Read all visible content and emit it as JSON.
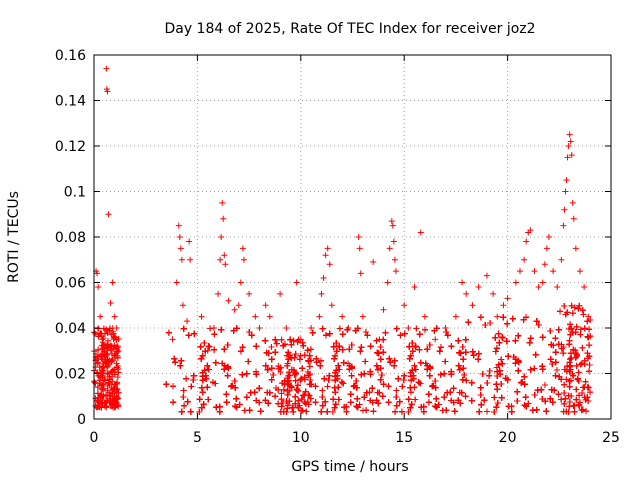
{
  "chart_data": {
    "type": "scatter",
    "title": "Day 184 of 2025, Rate Of TEC Index for receiver joz2",
    "xlabel": "GPS time / hours",
    "ylabel": "ROTI / TECUs",
    "xlim": [
      0,
      25
    ],
    "ylim": [
      0,
      0.16
    ],
    "xticks": [
      0,
      5,
      10,
      15,
      20,
      25
    ],
    "yticks": [
      0,
      0.02,
      0.04,
      0.06,
      0.08,
      0.1,
      0.12,
      0.14,
      0.16
    ],
    "xtick_labels": [
      "0",
      "5",
      "10",
      "15",
      "20",
      "25"
    ],
    "ytick_labels": [
      "0",
      "0.02",
      "0.04",
      "0.06",
      "0.08",
      "0.1",
      "0.12",
      "0.14",
      "0.16"
    ],
    "grid": true,
    "marker": "+",
    "color": "#ff0000",
    "series": [
      {
        "points": [
          [
            0.1,
            0.065
          ],
          [
            0.15,
            0.064
          ],
          [
            0.2,
            0.058
          ],
          [
            0.3,
            0.045
          ],
          [
            0.4,
            0.035
          ],
          [
            0.6,
            0.154
          ],
          [
            0.62,
            0.145
          ],
          [
            0.65,
            0.144
          ],
          [
            0.7,
            0.09
          ],
          [
            0.8,
            0.051
          ],
          [
            0.9,
            0.06
          ],
          [
            1.0,
            0.045
          ],
          [
            1.1,
            0.04
          ],
          [
            0.5,
            0.028
          ],
          [
            0.85,
            0.025
          ],
          [
            3.8,
            0.035
          ],
          [
            4.0,
            0.06
          ],
          [
            4.1,
            0.085
          ],
          [
            4.15,
            0.08
          ],
          [
            4.2,
            0.075
          ],
          [
            4.25,
            0.07
          ],
          [
            4.3,
            0.05
          ],
          [
            4.5,
            0.043
          ],
          [
            4.6,
            0.078
          ],
          [
            4.65,
            0.07
          ],
          [
            5.2,
            0.045
          ],
          [
            5.5,
            0.03
          ],
          [
            5.8,
            0.04
          ],
          [
            6.0,
            0.055
          ],
          [
            6.1,
            0.07
          ],
          [
            6.15,
            0.08
          ],
          [
            6.2,
            0.095
          ],
          [
            6.25,
            0.088
          ],
          [
            6.3,
            0.072
          ],
          [
            6.35,
            0.068
          ],
          [
            6.5,
            0.052
          ],
          [
            6.8,
            0.048
          ],
          [
            7.0,
            0.05
          ],
          [
            7.1,
            0.06
          ],
          [
            7.2,
            0.075
          ],
          [
            7.25,
            0.07
          ],
          [
            7.5,
            0.055
          ],
          [
            7.8,
            0.045
          ],
          [
            8.0,
            0.04
          ],
          [
            8.3,
            0.05
          ],
          [
            8.5,
            0.045
          ],
          [
            9.0,
            0.055
          ],
          [
            9.3,
            0.04
          ],
          [
            9.5,
            0.035
          ],
          [
            9.8,
            0.06
          ],
          [
            10.0,
            0.035
          ],
          [
            10.5,
            0.04
          ],
          [
            10.9,
            0.045
          ],
          [
            11.0,
            0.055
          ],
          [
            11.1,
            0.062
          ],
          [
            11.2,
            0.072
          ],
          [
            11.3,
            0.075
          ],
          [
            11.4,
            0.068
          ],
          [
            11.5,
            0.05
          ],
          [
            12.0,
            0.045
          ],
          [
            12.3,
            0.04
          ],
          [
            12.8,
            0.08
          ],
          [
            12.85,
            0.075
          ],
          [
            12.9,
            0.064
          ],
          [
            13.0,
            0.045
          ],
          [
            13.5,
            0.069
          ],
          [
            13.8,
            0.035
          ],
          [
            14.0,
            0.048
          ],
          [
            14.2,
            0.06
          ],
          [
            14.3,
            0.075
          ],
          [
            14.4,
            0.087
          ],
          [
            14.45,
            0.085
          ],
          [
            14.5,
            0.078
          ],
          [
            14.55,
            0.07
          ],
          [
            14.6,
            0.065
          ],
          [
            15.0,
            0.05
          ],
          [
            15.2,
            0.04
          ],
          [
            15.5,
            0.058
          ],
          [
            15.8,
            0.082
          ],
          [
            16.0,
            0.045
          ],
          [
            16.5,
            0.035
          ],
          [
            17.0,
            0.04
          ],
          [
            17.5,
            0.045
          ],
          [
            17.8,
            0.06
          ],
          [
            18.0,
            0.055
          ],
          [
            18.3,
            0.05
          ],
          [
            18.6,
            0.058
          ],
          [
            19.0,
            0.063
          ],
          [
            19.3,
            0.055
          ],
          [
            19.5,
            0.045
          ],
          [
            19.8,
            0.05
          ],
          [
            20.0,
            0.053
          ],
          [
            20.4,
            0.06
          ],
          [
            20.6,
            0.065
          ],
          [
            20.8,
            0.07
          ],
          [
            20.9,
            0.078
          ],
          [
            21.0,
            0.082
          ],
          [
            21.1,
            0.083
          ],
          [
            21.3,
            0.065
          ],
          [
            21.5,
            0.058
          ],
          [
            21.7,
            0.06
          ],
          [
            21.8,
            0.068
          ],
          [
            21.9,
            0.075
          ],
          [
            22.0,
            0.08
          ],
          [
            22.2,
            0.065
          ],
          [
            22.4,
            0.058
          ],
          [
            22.6,
            0.07
          ],
          [
            22.7,
            0.085
          ],
          [
            22.75,
            0.092
          ],
          [
            22.8,
            0.1
          ],
          [
            22.85,
            0.105
          ],
          [
            22.9,
            0.115
          ],
          [
            22.95,
            0.12
          ],
          [
            23.0,
            0.125
          ],
          [
            23.05,
            0.122
          ],
          [
            23.1,
            0.116
          ],
          [
            23.15,
            0.095
          ],
          [
            23.2,
            0.088
          ],
          [
            23.3,
            0.075
          ],
          [
            23.5,
            0.065
          ],
          [
            23.7,
            0.058
          ],
          [
            23.9,
            0.045
          ]
        ]
      }
    ],
    "dense_bands": [
      {
        "x": [
          0.0,
          1.2
        ],
        "y": [
          0.005,
          0.04
        ]
      },
      {
        "x": [
          3.5,
          8.8
        ],
        "y": [
          0.003,
          0.04
        ]
      },
      {
        "x": [
          8.8,
          10.5
        ],
        "y": [
          0.003,
          0.035
        ]
      },
      {
        "x": [
          10.5,
          14.0
        ],
        "y": [
          0.003,
          0.04
        ]
      },
      {
        "x": [
          14.0,
          18.0
        ],
        "y": [
          0.003,
          0.04
        ]
      },
      {
        "x": [
          18.0,
          22.5
        ],
        "y": [
          0.003,
          0.045
        ]
      },
      {
        "x": [
          22.5,
          24.0
        ],
        "y": [
          0.003,
          0.05
        ]
      }
    ]
  }
}
